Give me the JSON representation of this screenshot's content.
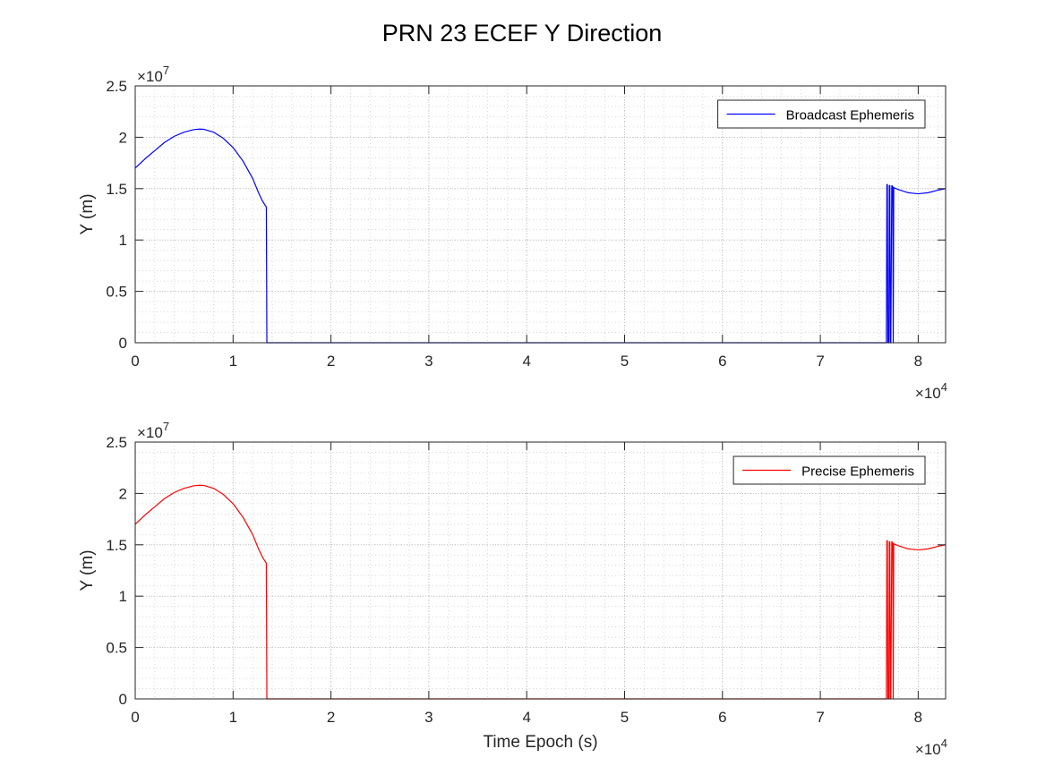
{
  "figure": {
    "title": "PRN 23 ECEF Y Direction"
  },
  "chart_data": [
    {
      "type": "line",
      "xlabel": "",
      "ylabel": "Y (m)",
      "xlim": [
        0,
        82800
      ],
      "ylim": [
        0,
        25000000
      ],
      "x_ticks": [
        0,
        10000,
        20000,
        30000,
        40000,
        50000,
        60000,
        70000,
        80000
      ],
      "x_tick_labels": [
        "0",
        "1",
        "2",
        "3",
        "4",
        "5",
        "6",
        "7",
        "8"
      ],
      "y_ticks": [
        0,
        5000000,
        10000000,
        15000000,
        20000000,
        25000000
      ],
      "y_tick_labels": [
        "0",
        "0.5",
        "1",
        "1.5",
        "2",
        "2.5"
      ],
      "x_exponent_base": "×10",
      "x_exponent_power": "4",
      "y_exponent_base": "×10",
      "y_exponent_power": "7",
      "grid": true,
      "minor_grid": true,
      "legend_position": "top-right",
      "series": [
        {
          "name": "Broadcast Ephemeris",
          "color": "#0000ff",
          "x": [
            0,
            1000,
            2000,
            3000,
            4000,
            5000,
            6000,
            6600,
            7000,
            8000,
            9000,
            10000,
            11000,
            12000,
            12600,
            13000,
            13200,
            13400,
            13450,
            13500,
            20000,
            30000,
            40000,
            50000,
            60000,
            70000,
            76750,
            76800,
            76850,
            76900,
            77000,
            77050,
            77100,
            77150,
            77200,
            77300,
            77400,
            77450,
            77500,
            78000,
            79000,
            80000,
            81000,
            82000,
            82800
          ],
          "y": [
            17000000,
            17900000,
            18700000,
            19500000,
            20100000,
            20500000,
            20750000,
            20800000,
            20780000,
            20500000,
            19900000,
            19000000,
            17700000,
            16000000,
            14600000,
            13800000,
            13500000,
            13200000,
            0,
            0,
            0,
            0,
            0,
            0,
            0,
            0,
            0,
            15400000,
            15400000,
            0,
            0,
            15300000,
            15300000,
            0,
            0,
            15300000,
            15200000,
            0,
            15100000,
            14900000,
            14600000,
            14500000,
            14600000,
            14850000,
            15000000
          ]
        }
      ]
    },
    {
      "type": "line",
      "xlabel": "Time Epoch (s)",
      "ylabel": "Y (m)",
      "xlim": [
        0,
        82800
      ],
      "ylim": [
        0,
        25000000
      ],
      "x_ticks": [
        0,
        10000,
        20000,
        30000,
        40000,
        50000,
        60000,
        70000,
        80000
      ],
      "x_tick_labels": [
        "0",
        "1",
        "2",
        "3",
        "4",
        "5",
        "6",
        "7",
        "8"
      ],
      "y_ticks": [
        0,
        5000000,
        10000000,
        15000000,
        20000000,
        25000000
      ],
      "y_tick_labels": [
        "0",
        "0.5",
        "1",
        "1.5",
        "2",
        "2.5"
      ],
      "x_exponent_base": "×10",
      "x_exponent_power": "4",
      "y_exponent_base": "×10",
      "y_exponent_power": "7",
      "grid": true,
      "minor_grid": true,
      "legend_position": "top-right",
      "series": [
        {
          "name": "Precise Ephemeris",
          "color": "#ff0000",
          "x": [
            0,
            1000,
            2000,
            3000,
            4000,
            5000,
            6000,
            6600,
            7000,
            8000,
            9000,
            10000,
            11000,
            12000,
            12600,
            13000,
            13200,
            13400,
            13450,
            13500,
            20000,
            30000,
            40000,
            50000,
            60000,
            70000,
            76750,
            76800,
            76850,
            76900,
            77000,
            77050,
            77100,
            77150,
            77200,
            77300,
            77400,
            77450,
            77500,
            78000,
            79000,
            80000,
            81000,
            82000,
            82800
          ],
          "y": [
            17000000,
            17900000,
            18700000,
            19500000,
            20100000,
            20500000,
            20750000,
            20800000,
            20780000,
            20500000,
            19900000,
            19000000,
            17700000,
            16000000,
            14600000,
            13800000,
            13500000,
            13200000,
            0,
            0,
            0,
            0,
            0,
            0,
            0,
            0,
            0,
            15400000,
            15400000,
            0,
            0,
            15300000,
            15300000,
            0,
            0,
            15300000,
            15200000,
            0,
            15100000,
            14900000,
            14600000,
            14500000,
            14600000,
            14850000,
            15000000
          ]
        }
      ]
    }
  ]
}
